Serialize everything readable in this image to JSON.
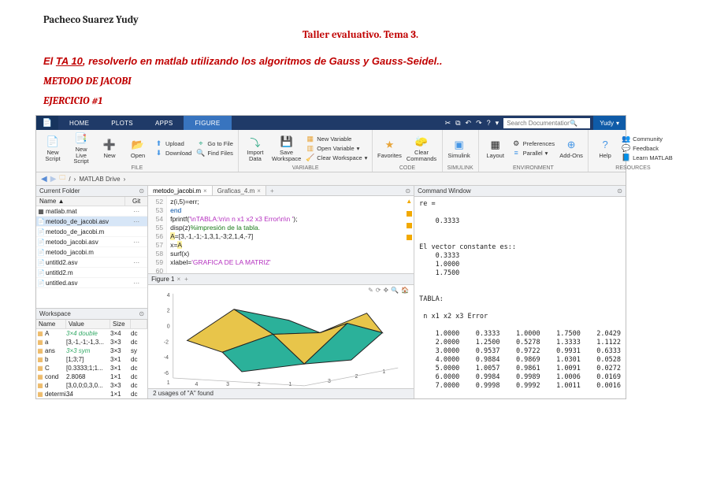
{
  "doc": {
    "author": "Pacheco Suarez Yudy",
    "title": "Taller evaluativo. Tema 3.",
    "hint_pre": "El ",
    "hint_link": "TA 10",
    "hint_post": ", resolverlo en matlab utilizando los algoritmos de Gauss y Gauss-Seidel..",
    "metodo": "METODO DE JACOBI",
    "ejercicio": "EJERCICIO #1"
  },
  "tabs": {
    "home": "HOME",
    "plots": "PLOTS",
    "apps": "APPS",
    "figure": "FIGURE"
  },
  "search_placeholder": "Search Documentation",
  "user": "Yudy",
  "toolstrip": {
    "new_script": "New\nScript",
    "new_live": "New\nLive Script",
    "new": "New",
    "open": "Open",
    "upload": "Upload",
    "download": "Download",
    "goto": "Go to File",
    "find": "Find Files",
    "file_label": "FILE",
    "import": "Import\nData",
    "save_ws": "Save\nWorkspace",
    "new_var": "New Variable",
    "open_var": "Open Variable",
    "clear_ws": "Clear Workspace",
    "var_label": "VARIABLE",
    "favorites": "Favorites",
    "clear_cmd": "Clear\nCommands",
    "code_label": "CODE",
    "simulink": "Simulink",
    "sim_label": "SIMULINK",
    "layout": "Layout",
    "prefs": "Preferences",
    "parallel": "Parallel",
    "addons": "Add-Ons",
    "env_label": "ENVIRONMENT",
    "help": "Help",
    "community": "Community",
    "feedback": "Feedback",
    "learn": "Learn MATLAB",
    "res_label": "RESOURCES"
  },
  "path": {
    "root": "/",
    "drive": "MATLAB Drive",
    "sep": "›"
  },
  "current_folder": {
    "title": "Current Folder",
    "col_name": "Name ▲",
    "col_git": "Git",
    "files": [
      {
        "icon": "▦",
        "name": "matlab.mat",
        "git": "⋯"
      },
      {
        "icon": "📄",
        "name": "metodo_de_jacobi.asv",
        "git": "⋯",
        "sel": true
      },
      {
        "icon": "📄",
        "name": "metodo_de_jacobi.m",
        "git": ""
      },
      {
        "icon": "📄",
        "name": "metodo_jacobi.asv",
        "git": "⋯"
      },
      {
        "icon": "📄",
        "name": "metodo_jacobi.m",
        "git": ""
      },
      {
        "icon": "📄",
        "name": "untitld2.asv",
        "git": "⋯"
      },
      {
        "icon": "📄",
        "name": "untitld2.m",
        "git": ""
      },
      {
        "icon": "📄",
        "name": "untitled.asv",
        "git": "⋯"
      }
    ]
  },
  "workspace": {
    "title": "Workspace",
    "col_name": "Name",
    "col_value": "Value",
    "col_size": "Size",
    "rows": [
      {
        "n": "A",
        "v": "3×4 double",
        "s": "3×4",
        "x": "dc",
        "vstyle": "font-style:italic;color:#3a6;"
      },
      {
        "n": "a",
        "v": "[3,-1,-1;-1,3...",
        "s": "3×3",
        "x": "dc"
      },
      {
        "n": "ans",
        "v": "3×3 sym",
        "s": "3×3",
        "x": "sy",
        "vstyle": "font-style:italic;color:#3a6;"
      },
      {
        "n": "b",
        "v": "[1;3;7]",
        "s": "3×1",
        "x": "dc"
      },
      {
        "n": "C",
        "v": "[0.3333;1;1...",
        "s": "3×1",
        "x": "dc"
      },
      {
        "n": "cond",
        "v": "2.8068",
        "s": "1×1",
        "x": "dc"
      },
      {
        "n": "d",
        "v": "[3,0,0;0,3,0...",
        "s": "3×3",
        "x": "dc"
      },
      {
        "n": "determi...",
        "v": "34",
        "s": "1×1",
        "x": "dc"
      }
    ]
  },
  "editor": {
    "tab1": "metodo_jacobi.m",
    "tab2": "Graficas_4.m",
    "lines_start": 52,
    "code": [
      {
        "n": 52,
        "t": "z(i,5)=err;"
      },
      {
        "n": 53,
        "t": "end",
        "cls": "kw"
      },
      {
        "n": 54,
        "t": "fprintf('\\nTABLA:\\n\\n n x1 x2 x3 Error\\n\\n ');",
        "fmt": "fprintf(<span class='str'>'\\nTABLA:\\n\\n n x1 x2 x3 Error\\n\\n '</span>);"
      },
      {
        "n": 55,
        "t": "disp(z)%impresión de la tabla.",
        "fmt": "disp(z)<span class='com'>%impresión de la tabla.</span>"
      },
      {
        "n": 56,
        "t": "A=[3,-1,-1;-1,3,1,-3;2,1,4,-7]",
        "fmt": "<span class='hi'>A</span>=[3,-1,-1;-1,3,1,-3;2,1,4,-7]"
      },
      {
        "n": 57,
        "t": "x=A",
        "fmt": "x=<span class='hi'>A</span>"
      },
      {
        "n": 58,
        "t": "surf(x)"
      },
      {
        "n": 59,
        "t": "xlabel='GRAFICA DE LA MATRIZ'",
        "fmt": "xlabel=<span class='str'>'GRAFICA DE LA MATRIZ'</span>"
      },
      {
        "n": 60,
        "t": ""
      }
    ],
    "lint_colors": [
      "#f2a900",
      "#f2a900",
      "#f2a900"
    ],
    "status": "2 usages of \"A\" found"
  },
  "figure": {
    "title": "Figure 1",
    "yticks": [
      4,
      2,
      0,
      -2,
      -4,
      -6,
      1
    ],
    "xticks_bottom": [
      4,
      3,
      2,
      1
    ],
    "xticks_right": [
      3,
      2,
      1
    ],
    "surf_color1": "#e8c54a",
    "surf_color2": "#2bb19a",
    "edge": "#222"
  },
  "cmd": {
    "title": "Command Window",
    "text": "re =\n\n    0.3333\n\n\nEl vector constante es::\n    0.3333\n    1.0000\n    1.7500\n\n\nTABLA:\n\n n x1 x2 x3 Error\n\n    1.0000    0.3333    1.0000    1.7500    2.0429\n    2.0000    1.2500    0.5278    1.3333    1.1122\n    3.0000    0.9537    0.9722    0.9931    0.6333\n    4.0000    0.9884    0.9869    1.0301    0.0528\n    5.0000    1.0057    0.9861    1.0091    0.0272\n    6.0000    0.9984    0.9989    1.0006    0.0169\n    7.0000    0.9998    0.9992    1.0011    0.0016"
  }
}
